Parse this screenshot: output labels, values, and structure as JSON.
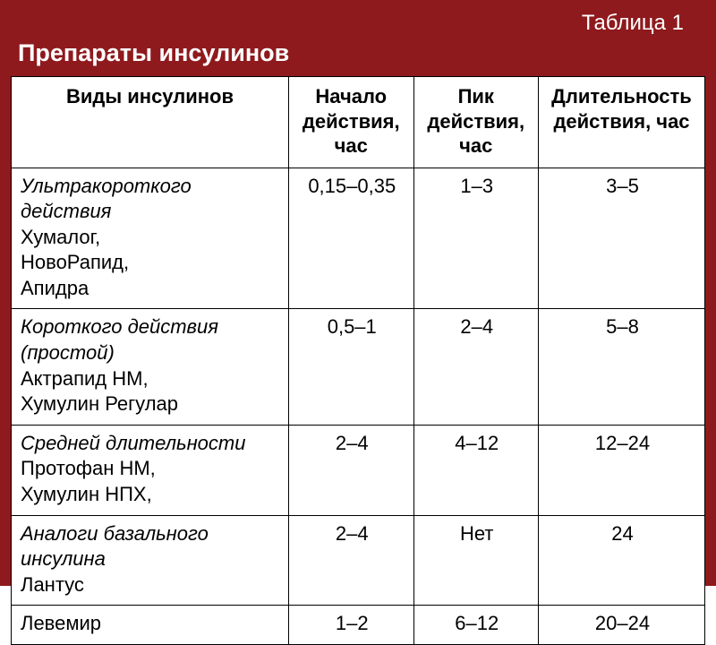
{
  "header": {
    "table_label": "Таблица 1",
    "title": "Препараты инсулинов"
  },
  "table": {
    "columns": [
      "Виды инсулинов",
      "Начало действия, час",
      "Пик действия, час",
      "Длительность действия, час"
    ],
    "column_widths_pct": [
      40,
      18,
      18,
      24
    ],
    "header_fontsize_pt": 16,
    "cell_fontsize_pt": 16,
    "border_color": "#000000",
    "background_color": "#ffffff",
    "rows": [
      {
        "category": "Ультракороткого действия",
        "drugs": [
          "Хумалог,",
          "НовоРапид,",
          "Апидра"
        ],
        "onset": "0,15–0,35",
        "peak": "1–3",
        "duration": "3–5"
      },
      {
        "category": "Короткого действия (простой)",
        "drugs": [
          "Актрапид НМ,",
          "Хумулин Регулар"
        ],
        "onset": "0,5–1",
        "peak": "2–4",
        "duration": "5–8"
      },
      {
        "category": "Средней длительности",
        "drugs": [
          "Протофан НМ,",
          "Хумулин НПХ,"
        ],
        "onset": "2–4",
        "peak": "4–12",
        "duration": "12–24"
      },
      {
        "category": "Аналоги базального инсулина",
        "drugs": [
          "Лантус"
        ],
        "onset": "2–4",
        "peak": "Нет",
        "duration": "24"
      },
      {
        "category": "",
        "drugs": [
          "Левемир"
        ],
        "onset": "1–2",
        "peak": "6–12",
        "duration": "20–24"
      }
    ]
  },
  "colors": {
    "frame_background": "#8e1a1d",
    "header_text": "#ffffff",
    "cell_text": "#000000"
  }
}
